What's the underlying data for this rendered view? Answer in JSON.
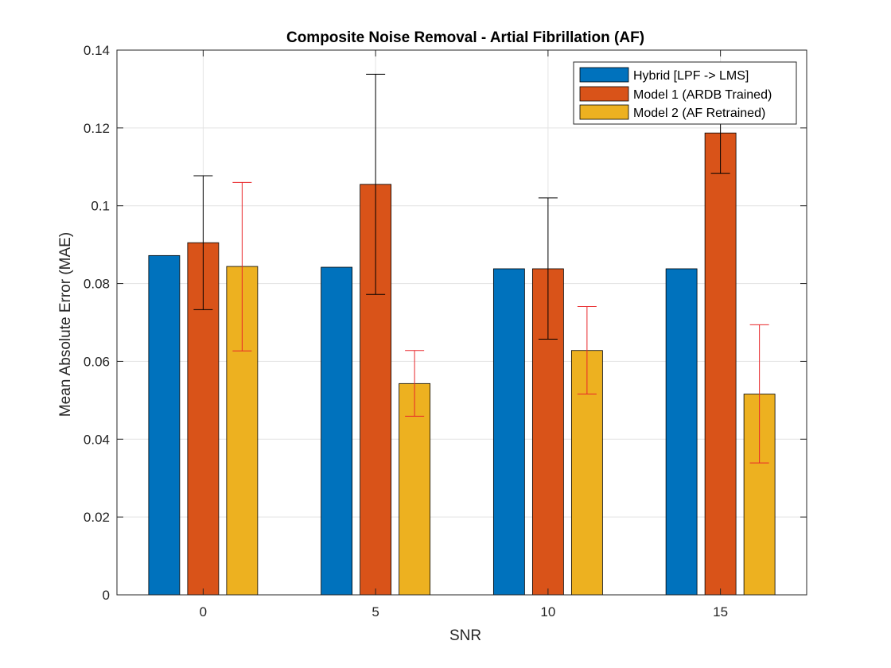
{
  "chart_data": {
    "type": "bar",
    "title": "Composite Noise Removal - Artial Fibrillation  (AF)",
    "xlabel": "SNR",
    "ylabel": "Mean Absolute Error (MAE)",
    "categories": [
      "0",
      "5",
      "10",
      "15"
    ],
    "ylim": [
      0,
      0.14
    ],
    "yticks": [
      0,
      0.02,
      0.04,
      0.06,
      0.08,
      0.1,
      0.12,
      0.14
    ],
    "ytick_labels": [
      "0",
      "0.02",
      "0.04",
      "0.06",
      "0.08",
      "0.1",
      "0.12",
      "0.14"
    ],
    "grid": true,
    "legend_position": "top-right",
    "series": [
      {
        "name": "Hybrid [LPF -> LMS]",
        "color": "#0072BD",
        "values": [
          0.0872,
          0.0842,
          0.0838,
          0.0838
        ],
        "errors": null,
        "error_color": null
      },
      {
        "name": "Model 1 (ARDB Trained)",
        "color": "#D95319",
        "values": [
          0.0905,
          0.1055,
          0.0838,
          0.1187
        ],
        "errors": [
          [
            0.0733,
            0.1077
          ],
          [
            0.0772,
            0.1338
          ],
          [
            0.0657,
            0.102
          ],
          [
            0.1083,
            0.1292
          ]
        ],
        "error_color": "#000000"
      },
      {
        "name": "Model 2 (AF Retrained)",
        "color": "#EDB120",
        "values": [
          0.0844,
          0.0543,
          0.0628,
          0.0516
        ],
        "errors": [
          [
            0.0627,
            0.106
          ],
          [
            0.0459,
            0.0628
          ],
          [
            0.0516,
            0.0741
          ],
          [
            0.0339,
            0.0694
          ]
        ],
        "error_color": "#E8262A"
      }
    ]
  }
}
